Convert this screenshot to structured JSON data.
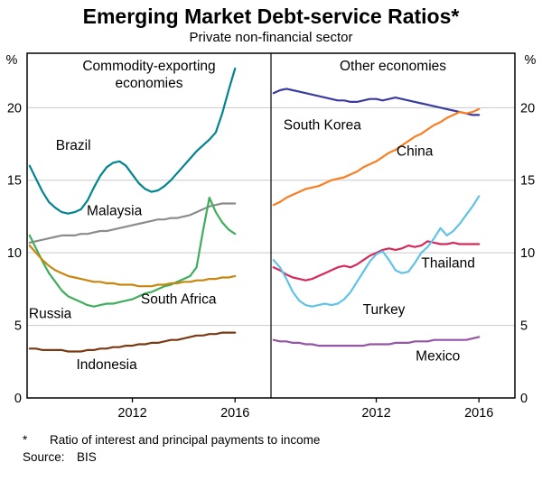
{
  "header": {
    "title": "Emerging Market Debt-service Ratios*",
    "subtitle": "Private non-financial sector"
  },
  "footnotes": {
    "marker": "*",
    "note": "Ratio of interest and principal payments to income",
    "source_label": "Source:",
    "source": "BIS"
  },
  "chart_data": {
    "type": "line",
    "unit": "%",
    "ylim": [
      0,
      23.75
    ],
    "yticks": [
      0,
      5,
      10,
      15,
      20
    ],
    "xlim": [
      2007.9,
      2017.4
    ],
    "xticks": [
      2012,
      2016
    ],
    "grid": true,
    "x_start": 2008.0,
    "x_step": 0.25,
    "grid_color": "#c9c9c9",
    "panels": [
      {
        "label_lines": [
          "Commodity-exporting",
          "economies"
        ],
        "series": [
          {
            "name": "Brazil",
            "color": "#00848f",
            "label_at": [
              2009.7,
              17.4
            ],
            "values": [
              16.0,
              15.1,
              14.2,
              13.5,
              13.1,
              12.8,
              12.7,
              12.8,
              13.0,
              13.6,
              14.5,
              15.3,
              15.9,
              16.2,
              16.3,
              16.0,
              15.4,
              14.8,
              14.4,
              14.2,
              14.3,
              14.6,
              15.0,
              15.5,
              16.0,
              16.5,
              17.0,
              17.4,
              17.8,
              18.3,
              19.6,
              21.2,
              22.7
            ]
          },
          {
            "name": "Malaysia",
            "color": "#8c8c8c",
            "label_at": [
              2011.3,
              12.9
            ],
            "values": [
              10.7,
              10.8,
              10.9,
              11.0,
              11.1,
              11.2,
              11.2,
              11.2,
              11.3,
              11.3,
              11.4,
              11.5,
              11.5,
              11.6,
              11.7,
              11.8,
              11.9,
              12.0,
              12.1,
              12.2,
              12.3,
              12.3,
              12.4,
              12.4,
              12.5,
              12.6,
              12.8,
              13.0,
              13.2,
              13.3,
              13.4,
              13.4,
              13.4
            ]
          },
          {
            "name": "Russia",
            "color": "#3fae5c",
            "label_at": [
              2008.8,
              5.8
            ],
            "values": [
              11.2,
              10.3,
              9.4,
              8.6,
              8.0,
              7.4,
              7.0,
              6.8,
              6.6,
              6.4,
              6.3,
              6.4,
              6.5,
              6.5,
              6.6,
              6.7,
              6.8,
              7.0,
              7.2,
              7.3,
              7.5,
              7.7,
              7.8,
              8.0,
              8.2,
              8.4,
              9.0,
              11.5,
              13.8,
              12.8,
              12.1,
              11.6,
              11.3
            ]
          },
          {
            "name": "South Africa",
            "color": "#c8860d",
            "label_at": [
              2013.8,
              6.8
            ],
            "values": [
              10.5,
              10.0,
              9.5,
              9.1,
              8.8,
              8.6,
              8.4,
              8.3,
              8.2,
              8.1,
              8.0,
              8.0,
              7.9,
              7.9,
              7.8,
              7.8,
              7.8,
              7.7,
              7.7,
              7.7,
              7.8,
              7.8,
              7.9,
              7.9,
              8.0,
              8.0,
              8.1,
              8.1,
              8.2,
              8.2,
              8.3,
              8.3,
              8.4
            ]
          },
          {
            "name": "Indonesia",
            "color": "#7a3a11",
            "label_at": [
              2011.0,
              2.3
            ],
            "values": [
              3.4,
              3.4,
              3.3,
              3.3,
              3.3,
              3.3,
              3.2,
              3.2,
              3.2,
              3.3,
              3.3,
              3.4,
              3.4,
              3.5,
              3.5,
              3.6,
              3.6,
              3.7,
              3.7,
              3.8,
              3.8,
              3.9,
              4.0,
              4.0,
              4.1,
              4.2,
              4.3,
              4.3,
              4.4,
              4.4,
              4.5,
              4.5,
              4.5
            ]
          }
        ]
      },
      {
        "label_lines": [
          "Other economies"
        ],
        "series": [
          {
            "name": "South Korea",
            "color": "#3a3a9f",
            "label_at": [
              2009.9,
              18.8
            ],
            "values": [
              21.0,
              21.2,
              21.3,
              21.2,
              21.1,
              21.0,
              20.9,
              20.8,
              20.7,
              20.6,
              20.5,
              20.5,
              20.4,
              20.4,
              20.5,
              20.6,
              20.6,
              20.5,
              20.6,
              20.7,
              20.6,
              20.5,
              20.4,
              20.3,
              20.2,
              20.1,
              20.0,
              19.9,
              19.8,
              19.7,
              19.6,
              19.5,
              19.5
            ]
          },
          {
            "name": "China",
            "color": "#fb7c21",
            "label_at": [
              2013.5,
              17.0
            ],
            "values": [
              13.3,
              13.5,
              13.8,
              14.0,
              14.2,
              14.4,
              14.5,
              14.6,
              14.8,
              15.0,
              15.1,
              15.2,
              15.4,
              15.6,
              15.9,
              16.1,
              16.3,
              16.6,
              16.9,
              17.1,
              17.4,
              17.7,
              18.0,
              18.2,
              18.5,
              18.8,
              19.0,
              19.3,
              19.5,
              19.7,
              19.6,
              19.7,
              19.9
            ]
          },
          {
            "name": "Thailand",
            "color": "#d42a5b",
            "label_at": [
              2014.8,
              9.3
            ],
            "values": [
              9.0,
              8.8,
              8.5,
              8.3,
              8.2,
              8.1,
              8.2,
              8.4,
              8.6,
              8.8,
              9.0,
              9.1,
              9.0,
              9.2,
              9.5,
              9.8,
              10.0,
              10.2,
              10.3,
              10.2,
              10.3,
              10.5,
              10.4,
              10.5,
              10.8,
              10.7,
              10.6,
              10.6,
              10.7,
              10.6,
              10.6,
              10.6,
              10.6
            ]
          },
          {
            "name": "Turkey",
            "color": "#5fc3e8",
            "label_at": [
              2012.3,
              6.1
            ],
            "values": [
              9.5,
              9.0,
              8.2,
              7.3,
              6.7,
              6.4,
              6.3,
              6.4,
              6.5,
              6.4,
              6.5,
              6.8,
              7.3,
              8.0,
              8.7,
              9.4,
              9.9,
              10.1,
              9.5,
              8.8,
              8.6,
              8.7,
              9.3,
              10.0,
              10.4,
              11.0,
              11.7,
              11.2,
              11.5,
              12.0,
              12.6,
              13.2,
              13.9
            ]
          },
          {
            "name": "Mexico",
            "color": "#9455a5",
            "label_at": [
              2014.4,
              2.9
            ],
            "values": [
              4.0,
              3.9,
              3.9,
              3.8,
              3.8,
              3.7,
              3.7,
              3.6,
              3.6,
              3.6,
              3.6,
              3.6,
              3.6,
              3.6,
              3.6,
              3.7,
              3.7,
              3.7,
              3.7,
              3.8,
              3.8,
              3.8,
              3.9,
              3.9,
              3.9,
              4.0,
              4.0,
              4.0,
              4.0,
              4.0,
              4.0,
              4.1,
              4.2
            ]
          }
        ]
      }
    ]
  }
}
